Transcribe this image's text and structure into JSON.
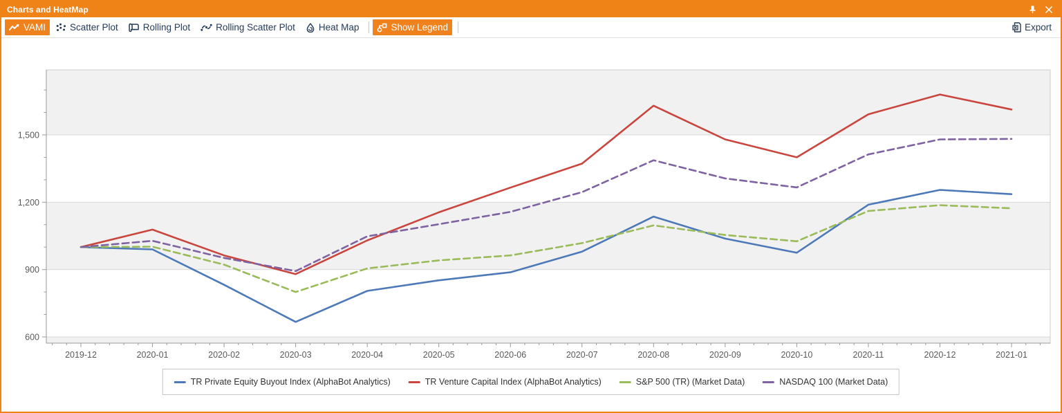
{
  "window": {
    "title": "Charts and HeatMap"
  },
  "titlebar": {
    "pin_icon": "pin-icon",
    "close_icon": "close-icon"
  },
  "toolbar": {
    "buttons": [
      {
        "label": "VAMI",
        "icon": "vami-line-icon",
        "active": true
      },
      {
        "label": "Scatter Plot",
        "icon": "scatter-plot-icon",
        "active": false
      },
      {
        "label": "Rolling Plot",
        "icon": "rolling-plot-icon",
        "active": false
      },
      {
        "label": "Rolling Scatter Plot",
        "icon": "rolling-scatter-plot-icon",
        "active": false
      },
      {
        "label": "Heat Map",
        "icon": "heat-map-icon",
        "active": false
      },
      {
        "label": "Show Legend",
        "icon": "show-legend-icon",
        "active": true
      }
    ],
    "export_label": "Export"
  },
  "chart_data": {
    "type": "line",
    "x": [
      "2019-12",
      "2020-01",
      "2020-02",
      "2020-03",
      "2020-04",
      "2020-05",
      "2020-06",
      "2020-07",
      "2020-08",
      "2020-09",
      "2020-10",
      "2020-11",
      "2020-12",
      "2021-01"
    ],
    "series": [
      {
        "name": "TR Private Equity Buyout Index (AlphaBot Analytics)",
        "color": "#4e79b8",
        "dash": "solid",
        "values": [
          1000,
          990,
          832,
          667,
          805,
          852,
          888,
          980,
          1136,
          1038,
          975,
          1189,
          1255,
          1236
        ]
      },
      {
        "name": "TR Venture Capital Index (AlphaBot Analytics)",
        "color": "#c9453e",
        "dash": "solid",
        "values": [
          1000,
          1078,
          963,
          880,
          1030,
          1155,
          1265,
          1372,
          1630,
          1480,
          1400,
          1592,
          1680,
          1613
        ]
      },
      {
        "name": "S&P 500 (TR) (Market Data)",
        "color": "#9abb59",
        "dash": "dashed",
        "values": [
          1000,
          1002,
          922,
          800,
          905,
          941,
          963,
          1018,
          1097,
          1054,
          1026,
          1161,
          1187,
          1173
        ]
      },
      {
        "name": "NASDAQ 100 (Market Data)",
        "color": "#7e62a1",
        "dash": "dashed",
        "values": [
          1000,
          1028,
          952,
          893,
          1048,
          1102,
          1157,
          1245,
          1387,
          1306,
          1266,
          1413,
          1480,
          1482
        ]
      }
    ],
    "title": "",
    "xlabel": "",
    "ylabel": "",
    "yticks": [
      600,
      900,
      1200,
      1500
    ],
    "ytick_labels": [
      "600",
      "900",
      "1,200",
      "1,500"
    ],
    "ylim": [
      572,
      1790
    ],
    "grid": "horizontal-alternating-bands",
    "legend_position": "bottom-center"
  },
  "colors": {
    "accent_orange": "#ef8318",
    "band_gray": "#f1f1f1",
    "gridline": "#d8d8d8",
    "axis": "#9a9a9a",
    "tick_label": "#595959",
    "toolbar_text": "#253b56"
  }
}
